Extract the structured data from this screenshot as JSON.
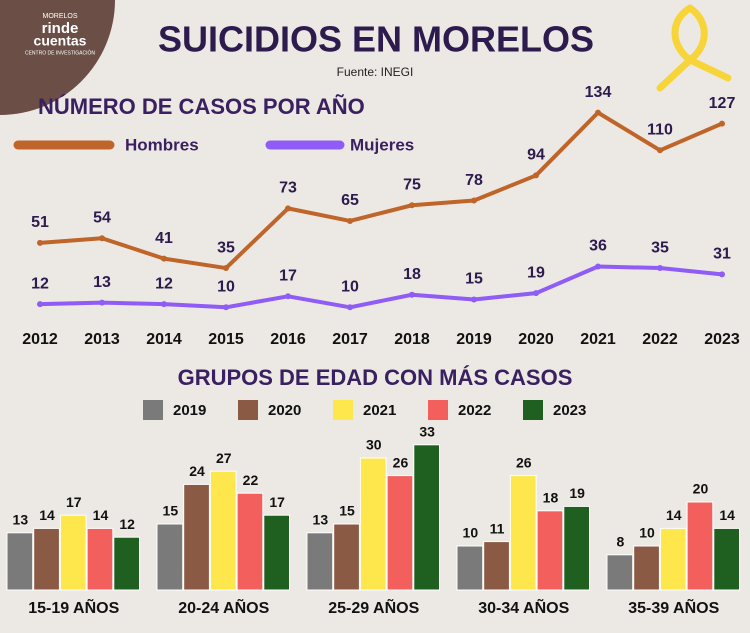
{
  "header": {
    "title": "SUICIDIOS EN MORELOS",
    "source": "Fuente: INEGI",
    "logo_top": "MORELOS",
    "logo_main1": "rinde",
    "logo_main2": "cuentas",
    "logo_sub": "CENTRO DE INVESTIGACIÓN"
  },
  "chart_data": [
    {
      "type": "line",
      "title": "NÚMERO DE CASOS POR AÑO",
      "categories": [
        "2012",
        "2013",
        "2014",
        "2015",
        "2016",
        "2017",
        "2018",
        "2019",
        "2020",
        "2021",
        "2022",
        "2023"
      ],
      "series": [
        {
          "name": "Hombres",
          "color": "#c0652a",
          "values": [
            51,
            54,
            41,
            35,
            73,
            65,
            75,
            78,
            94,
            134,
            110,
            127
          ]
        },
        {
          "name": "Mujeres",
          "color": "#8f5cf5",
          "values": [
            12,
            13,
            12,
            10,
            17,
            10,
            18,
            15,
            19,
            36,
            35,
            31
          ]
        }
      ]
    },
    {
      "type": "bar",
      "title": "GRUPOS DE EDAD CON MÁS CASOS",
      "categories": [
        "15-19 AÑOS",
        "20-24 AÑOS",
        "25-29 AÑOS",
        "30-34 AÑOS",
        "35-39 AÑOS"
      ],
      "series": [
        {
          "name": "2019",
          "color": "#7a7a7a",
          "values": [
            13,
            15,
            13,
            10,
            8
          ]
        },
        {
          "name": "2020",
          "color": "#8a5a44",
          "values": [
            14,
            24,
            15,
            11,
            10
          ]
        },
        {
          "name": "2021",
          "color": "#fde74c",
          "values": [
            17,
            27,
            30,
            26,
            14
          ]
        },
        {
          "name": "2022",
          "color": "#f25f5c",
          "values": [
            14,
            22,
            26,
            18,
            20
          ]
        },
        {
          "name": "2023",
          "color": "#1f5f1f",
          "values": [
            12,
            17,
            33,
            19,
            14
          ]
        }
      ]
    }
  ]
}
